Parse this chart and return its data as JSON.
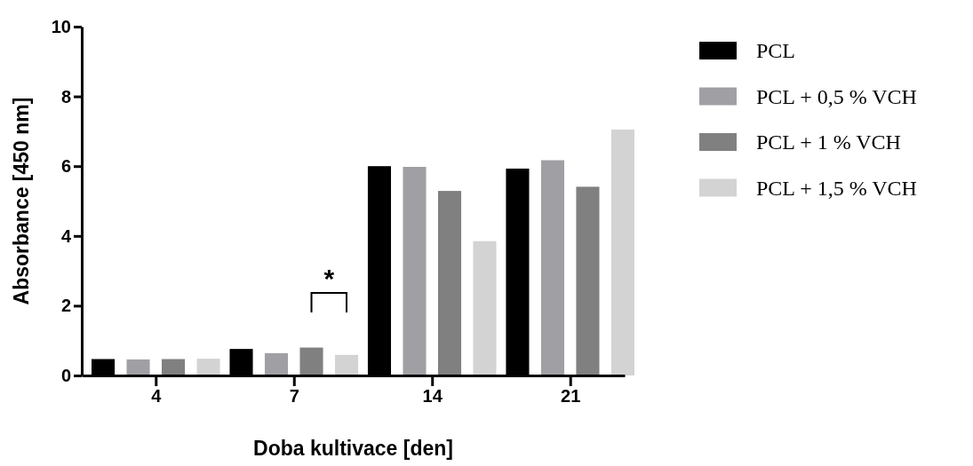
{
  "chart_data": {
    "type": "bar",
    "xlabel": "Doba kultivace [den]",
    "ylabel": "Absorbance [450 nm]",
    "categories": [
      "4",
      "7",
      "14",
      "21"
    ],
    "series": [
      {
        "name": "PCL",
        "color": "#000000",
        "values": [
          0.47,
          0.76,
          6.0,
          5.93
        ]
      },
      {
        "name": "PCL + 0,5 % VCH",
        "color": "#a0a0a4",
        "values": [
          0.46,
          0.64,
          5.98,
          6.17
        ]
      },
      {
        "name": "PCL + 1 % VCH",
        "color": "#808080",
        "values": [
          0.47,
          0.8,
          5.29,
          5.41
        ]
      },
      {
        "name": "PCL + 1,5 % VCH",
        "color": "#d3d3d3",
        "values": [
          0.48,
          0.59,
          3.85,
          7.05
        ]
      }
    ],
    "ylim": [
      0,
      10
    ],
    "yticks": [
      0,
      2,
      4,
      6,
      8,
      10
    ],
    "legend": "right",
    "grid": false,
    "annotations": [
      "*"
    ]
  }
}
